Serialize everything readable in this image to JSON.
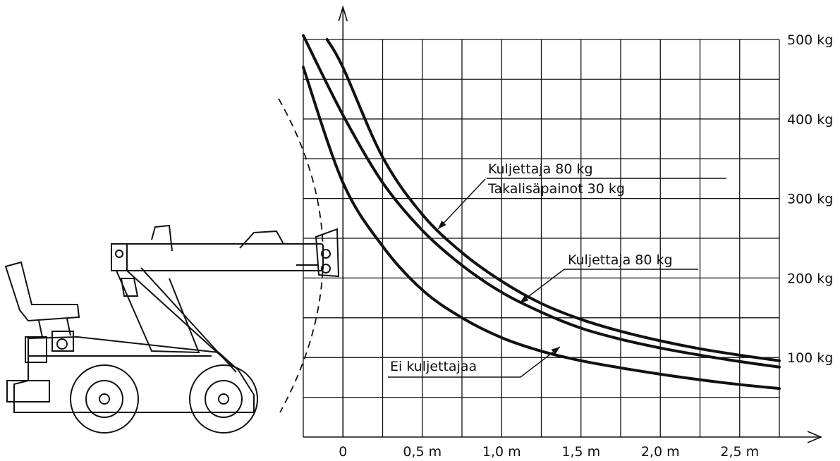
{
  "chart_data": {
    "type": "line",
    "title": "",
    "xlabel": "",
    "ylabel": "",
    "xlim": [
      -0.25,
      2.75
    ],
    "ylim": [
      0,
      500
    ],
    "x_ticks": [
      {
        "value": 0,
        "label": "0"
      },
      {
        "value": 0.5,
        "label": "0,5 m"
      },
      {
        "value": 1.0,
        "label": "1,0 m"
      },
      {
        "value": 1.5,
        "label": "1,5 m"
      },
      {
        "value": 2.0,
        "label": "2,0 m"
      },
      {
        "value": 2.5,
        "label": "2,5 m"
      }
    ],
    "y_ticks": [
      {
        "value": 100,
        "label": "100 kg"
      },
      {
        "value": 200,
        "label": "200 kg"
      },
      {
        "value": 300,
        "label": "300 kg"
      },
      {
        "value": 400,
        "label": "400 kg"
      },
      {
        "value": 500,
        "label": "500 kg"
      }
    ],
    "grid": true,
    "series": [
      {
        "x": [
          -0.25,
          0,
          0.25,
          0.5,
          0.75,
          1.0,
          1.25,
          1.5,
          1.75,
          2.0,
          2.25,
          2.5,
          2.75
        ],
        "y": [
          465,
          320,
          240,
          185,
          150,
          125,
          108,
          96,
          87,
          79,
          72,
          66,
          61
        ]
      },
      {
        "x": [
          -0.25,
          0,
          0.25,
          0.5,
          0.75,
          1.0,
          1.25,
          1.5,
          1.75,
          2.0,
          2.25,
          2.5,
          2.75
        ],
        "y": [
          505,
          405,
          320,
          260,
          216,
          182,
          157,
          137,
          123,
          112,
          103,
          95,
          88
        ]
      },
      {
        "x": [
          -0.1,
          0,
          0.25,
          0.5,
          0.75,
          1.0,
          1.25,
          1.5,
          1.75,
          2.0,
          2.25,
          2.5,
          2.75
        ],
        "y": [
          500,
          465,
          352,
          280,
          232,
          196,
          168,
          148,
          133,
          121,
          111,
          103,
          96
        ]
      }
    ],
    "annotations": [
      {
        "text": "Kuljettaja 80 kg"
      },
      {
        "text": "Takalisäpainot 30 kg"
      },
      {
        "text": "Kuljettaja 80 kg"
      },
      {
        "text": "Ei kuljettajaa"
      }
    ]
  }
}
